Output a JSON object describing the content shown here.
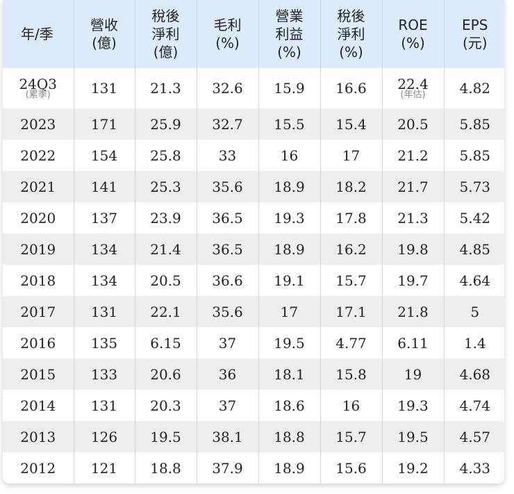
{
  "table": {
    "headers": [
      [
        "年/季"
      ],
      [
        "營收",
        "(億)"
      ],
      [
        "稅後",
        "淨利",
        "(億)"
      ],
      [
        "毛利",
        "(%)"
      ],
      [
        "營業",
        "利益",
        "(%)"
      ],
      [
        "稅後",
        "淨利",
        "(%)"
      ],
      [
        "ROE",
        "(%)"
      ],
      [
        "EPS",
        "(元)"
      ]
    ],
    "first_row": {
      "period": "24Q3",
      "period_note": "(累季)",
      "revenue": "131",
      "net_income": "21.3",
      "gross_margin": "32.6",
      "operating_margin": "15.9",
      "net_margin": "16.6",
      "roe": "22.4",
      "roe_note": "(年估)",
      "eps": "4.82"
    },
    "rows": [
      [
        "2023",
        "171",
        "25.9",
        "32.7",
        "15.5",
        "15.4",
        "20.5",
        "5.85"
      ],
      [
        "2022",
        "154",
        "25.8",
        "33",
        "16",
        "17",
        "21.2",
        "5.85"
      ],
      [
        "2021",
        "141",
        "25.3",
        "35.6",
        "18.9",
        "18.2",
        "21.7",
        "5.73"
      ],
      [
        "2020",
        "137",
        "23.9",
        "36.5",
        "19.3",
        "17.8",
        "21.3",
        "5.42"
      ],
      [
        "2019",
        "134",
        "21.4",
        "36.5",
        "18.9",
        "16.2",
        "19.8",
        "4.85"
      ],
      [
        "2018",
        "134",
        "20.5",
        "36.6",
        "19.1",
        "15.7",
        "19.7",
        "4.64"
      ],
      [
        "2017",
        "131",
        "22.1",
        "35.6",
        "17",
        "17.1",
        "21.8",
        "5"
      ],
      [
        "2016",
        "135",
        "6.15",
        "37",
        "19.5",
        "4.77",
        "6.11",
        "1.4"
      ],
      [
        "2015",
        "133",
        "20.6",
        "36",
        "18.1",
        "15.8",
        "19",
        "4.68"
      ],
      [
        "2014",
        "131",
        "20.3",
        "37",
        "18.6",
        "16",
        "19.3",
        "4.74"
      ],
      [
        "2013",
        "126",
        "19.5",
        "38.1",
        "18.8",
        "15.7",
        "19.5",
        "4.57"
      ],
      [
        "2012",
        "121",
        "18.8",
        "37.9",
        "18.9",
        "15.6",
        "19.2",
        "4.33"
      ]
    ]
  },
  "colors": {
    "header_bg": "#ddeafb",
    "stripe_bg": "#eeeeee",
    "note_text": "#888888"
  }
}
